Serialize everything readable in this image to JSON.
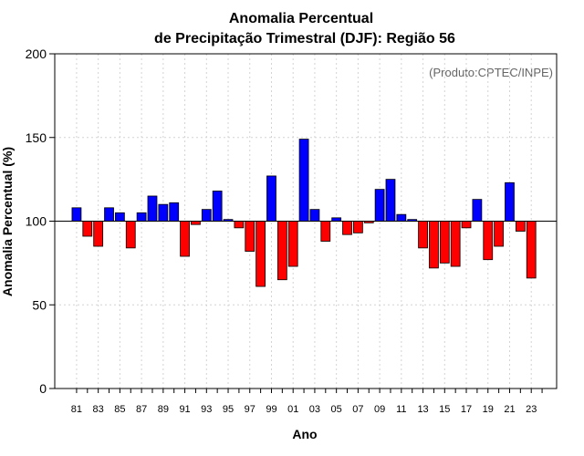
{
  "chart_data": {
    "type": "bar",
    "title": [
      "Anomalia Percentual",
      "de Precipitação Trimestral (DJF): Região 56"
    ],
    "xlabel": "Ano",
    "ylabel": "Anomalia Percentual (%)",
    "credit": "(Produto:CPTEC/INPE)",
    "ylim": [
      0,
      200
    ],
    "yticks": [
      0,
      50,
      100,
      150,
      200
    ],
    "baseline": 100,
    "colors": {
      "above": "#0000ff",
      "below": "#ff0000",
      "grid": "#d3d3d3"
    },
    "categories": [
      "81",
      "82",
      "83",
      "84",
      "85",
      "86",
      "87",
      "88",
      "89",
      "90",
      "91",
      "92",
      "93",
      "94",
      "95",
      "96",
      "97",
      "98",
      "99",
      "00",
      "01",
      "02",
      "03",
      "04",
      "05",
      "06",
      "07",
      "08",
      "09",
      "10",
      "11",
      "12",
      "13",
      "14",
      "15",
      "16",
      "17",
      "18",
      "19",
      "20",
      "21",
      "22",
      "23",
      "24"
    ],
    "values": [
      108,
      91,
      85,
      108,
      105,
      84,
      105,
      115,
      110,
      111,
      79,
      98,
      107,
      118,
      101,
      96,
      82,
      61,
      127,
      65,
      73,
      149,
      107,
      88,
      102,
      92,
      93,
      99,
      119,
      125,
      104,
      101,
      84,
      72,
      75,
      73,
      96,
      113,
      77,
      85,
      123,
      94,
      66,
      100
    ],
    "tick_labels": [
      "81",
      "83",
      "85",
      "87",
      "89",
      "91",
      "93",
      "95",
      "97",
      "99",
      "01",
      "03",
      "05",
      "07",
      "09",
      "11",
      "13",
      "15",
      "17",
      "19",
      "21",
      "23"
    ]
  }
}
